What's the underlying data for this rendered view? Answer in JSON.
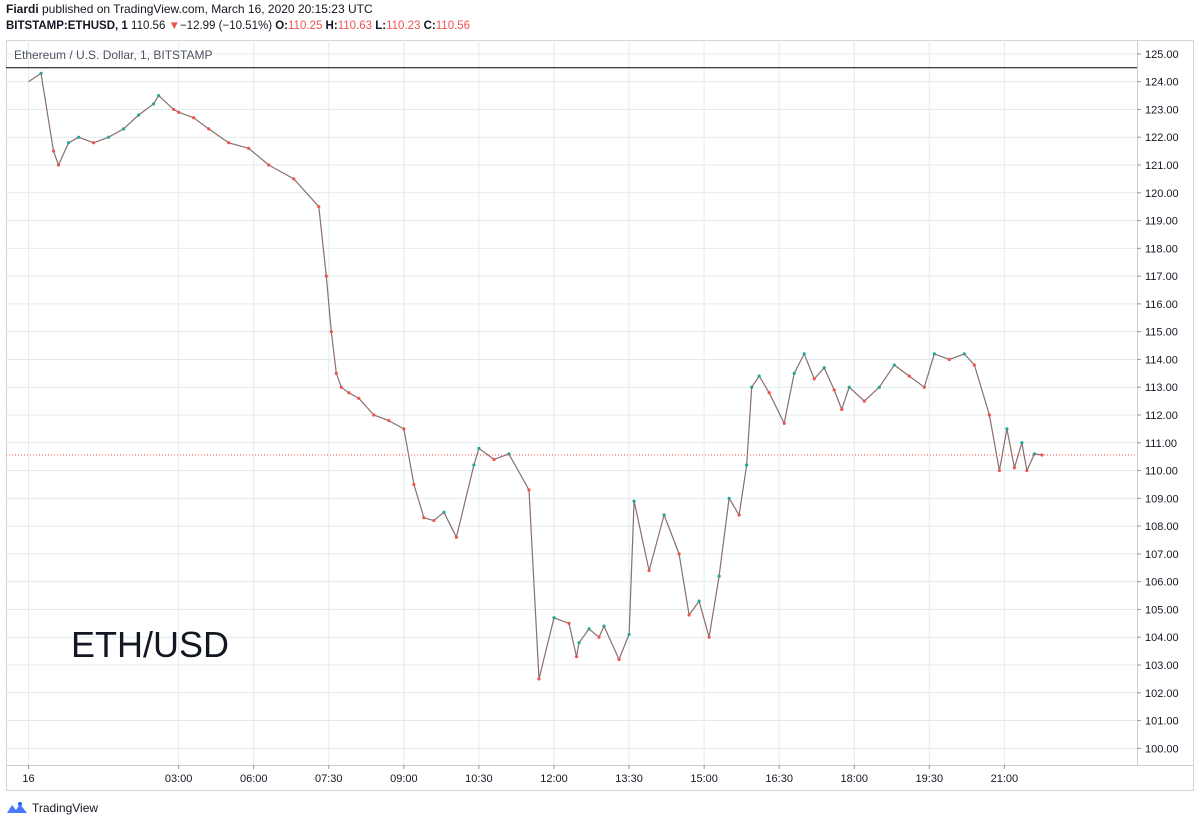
{
  "header": {
    "author": "Fiardi",
    "published_text": " published on TradingView.com, March 16, 2020 20:15:23 UTC",
    "symbol": "BITSTAMP:ETHUSD, 1",
    "last_price": "110.56",
    "change_arrow": "▼",
    "change": "−12.99 (−10.51%)",
    "ohlc": {
      "o_label": "O:",
      "o": "110.25",
      "h_label": "H:",
      "h": "110.63",
      "l_label": "L:",
      "l": "110.23",
      "c_label": "C:",
      "c": "110.56"
    }
  },
  "footer": {
    "brand": "TradingView"
  },
  "colors": {
    "up": "#26a69a",
    "down": "#ef5350",
    "grid": "#e1ecf2",
    "price_line": "#ef5350",
    "resistance": "#000000"
  },
  "chart_data": {
    "type": "line",
    "title": "Ethereum / U.S. Dollar, 1, BITSTAMP",
    "annotation": "ETH/USD",
    "xlabel": "",
    "ylabel": "",
    "x_tick_labels": [
      "16",
      "03:00",
      "06:00",
      "07:30",
      "09:00",
      "10:30",
      "12:00",
      "13:30",
      "15:00",
      "16:30",
      "18:00",
      "19:30",
      "21:00"
    ],
    "y_tick_labels": [
      "125.00",
      "124.00",
      "123.00",
      "122.00",
      "121.00",
      "120.00",
      "119.00",
      "118.00",
      "117.00",
      "116.00",
      "115.00",
      "114.00",
      "113.00",
      "112.00",
      "111.00",
      "110.00",
      "109.00",
      "108.00",
      "107.00",
      "106.00",
      "105.00",
      "104.00",
      "103.00",
      "102.00",
      "101.00",
      "100.00"
    ],
    "ylim": [
      99.4,
      125.5
    ],
    "xlim_hours": [
      -0.45,
      22.15
    ],
    "grid": true,
    "horizontal_lines": [
      {
        "price": 124.5,
        "style": "solid"
      },
      {
        "price": 110.56,
        "style": "dotted"
      }
    ],
    "series": [
      {
        "x_hours": [
          0.0,
          0.25,
          0.5,
          0.6,
          0.8,
          1.0,
          1.3,
          1.6,
          1.9,
          2.2,
          2.5,
          2.6,
          2.9,
          3.0,
          3.3,
          3.6,
          4.0,
          4.4,
          4.8,
          5.3,
          5.8,
          5.95,
          6.05,
          6.15,
          6.25,
          6.4,
          6.6,
          6.9,
          7.2,
          7.5,
          7.7,
          7.9,
          8.1,
          8.3,
          8.55,
          8.9,
          9.0,
          9.3,
          9.6,
          10.0,
          10.2,
          10.5,
          10.8,
          10.95,
          11.0,
          11.2,
          11.4,
          11.5,
          11.8,
          12.0,
          12.1,
          12.4,
          12.7,
          13.0,
          13.2,
          13.4,
          13.6,
          13.8,
          14.0,
          14.2,
          14.35,
          14.45,
          14.6,
          14.8,
          15.1,
          15.3,
          15.5,
          15.7,
          15.9,
          16.1,
          16.25,
          16.4,
          16.7,
          17.0,
          17.3,
          17.6,
          17.9,
          18.1,
          18.4,
          18.7,
          18.9,
          19.2,
          19.4,
          19.55,
          19.7,
          19.85,
          19.95,
          20.1,
          20.25
        ],
        "close": [
          124.0,
          124.3,
          121.5,
          121.0,
          121.8,
          122.0,
          121.8,
          122.0,
          122.3,
          122.8,
          123.2,
          123.5,
          123.0,
          122.9,
          122.7,
          122.3,
          121.8,
          121.6,
          121.0,
          120.5,
          119.5,
          117.0,
          115.0,
          113.5,
          113.0,
          112.8,
          112.6,
          112.0,
          111.8,
          111.5,
          109.5,
          108.3,
          108.2,
          108.5,
          107.6,
          110.2,
          110.8,
          110.4,
          110.6,
          109.3,
          102.5,
          104.7,
          104.5,
          103.3,
          103.8,
          104.3,
          104.0,
          104.4,
          103.2,
          104.1,
          108.9,
          106.4,
          108.4,
          107.0,
          104.8,
          105.3,
          104.0,
          106.2,
          109.0,
          108.4,
          110.2,
          113.0,
          113.4,
          112.8,
          111.7,
          113.5,
          114.2,
          113.3,
          113.7,
          112.9,
          112.2,
          113.0,
          112.5,
          113.0,
          113.8,
          113.4,
          113.0,
          114.2,
          114.0,
          114.2,
          113.8,
          112.0,
          110.0,
          111.5,
          110.1,
          111.0,
          110.0,
          110.6,
          110.56
        ]
      }
    ]
  }
}
